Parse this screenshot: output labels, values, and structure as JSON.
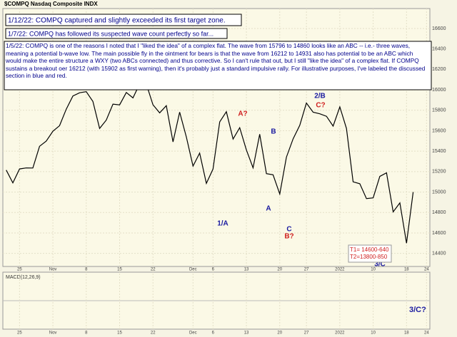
{
  "chart_data": {
    "type": "line",
    "title": "$COMPQ Nasdaq Composite INDX",
    "categories": [
      null,
      null,
      "25",
      null,
      null,
      null,
      null,
      "Nov",
      null,
      null,
      null,
      null,
      "8",
      null,
      null,
      null,
      null,
      "15",
      null,
      null,
      null,
      null,
      "22",
      null,
      null,
      null,
      null,
      null,
      "Dec",
      null,
      null,
      "6",
      null,
      null,
      null,
      null,
      "13",
      null,
      null,
      null,
      null,
      "20",
      null,
      null,
      null,
      "27",
      null,
      null,
      null,
      null,
      "2022",
      null,
      null,
      null,
      null,
      "10",
      null,
      null,
      null,
      null,
      "18",
      null,
      null,
      "24"
    ],
    "series": [
      {
        "name": "COMPQ",
        "color": "#000000",
        "values": [
          15215,
          15090,
          15226,
          15236,
          15235,
          15448,
          15498,
          15595,
          15649,
          15811,
          15940,
          15971,
          15982,
          15886,
          15622,
          15704,
          15860,
          15853,
          15974,
          15921,
          16057,
          16057,
          15854,
          15775,
          15845,
          15491,
          15782,
          15538,
          15254,
          15381,
          15085,
          15225,
          15686,
          15786,
          15518,
          15630,
          15413,
          15237,
          15566,
          15180,
          15169,
          14981,
          15341,
          15521,
          15653,
          15871,
          15781,
          15766,
          15741,
          15645,
          15833,
          15622,
          15100,
          15081,
          14936,
          14943,
          15153,
          15188,
          14806,
          14894,
          14500,
          15000,
          null,
          null
        ]
      }
    ],
    "ylim": [
      14300,
      16600
    ],
    "yticks": [
      14400,
      14600,
      14800,
      15000,
      15200,
      15400,
      15600,
      15800,
      16000,
      16200,
      16400,
      16600
    ],
    "grid": true,
    "notes": [
      "1/12/22:  COMPQ captured and slightly exceeded its first target zone.",
      "1/7/22:  COMPQ has followed its suspected wave count perfectly so far...",
      "1/5/22:  COMPQ is one of the reasons I noted that I \"liked the idea\" of a complex flat.  The wave from 15796 to 14860 looks like an ABC -- i.e.- three waves, meaning a potential b-wave low.  The main possible fly in the ointment for bears is that the wave from 16212 to 14931 also has potential to be an ABC which would make the entire structure a WXY (two ABCs connected) and thus corrective.  So I can't rule that out, but I still \"like the idea\" of a complex flat.  If COMPQ sustains a breakout oer 16212 (with 15902 as first warning), then it's probably just a standard impulsive rally.  For illustrative purposes, I've labeled the discussed section in blue and red."
    ],
    "wave_labels": [
      {
        "text": "1/A",
        "color": "#1a1aa0"
      },
      {
        "text": "A?",
        "color": "#d02020"
      },
      {
        "text": "B",
        "color": "#1a1aa0"
      },
      {
        "text": "A",
        "color": "#1a1aa0"
      },
      {
        "text": "C",
        "color": "#1a1aa0"
      },
      {
        "text": "B?",
        "color": "#d02020"
      },
      {
        "text": "2/B",
        "color": "#1a1aa0"
      },
      {
        "text": "C?",
        "color": "#d02020"
      },
      {
        "text": "3/C",
        "color": "#1a1aa0"
      }
    ],
    "targets": [
      "T1= 14600-640",
      "T2=13800-850"
    ],
    "macd_label": "MACD(12,26,9)",
    "macd_note": "3/C?"
  }
}
